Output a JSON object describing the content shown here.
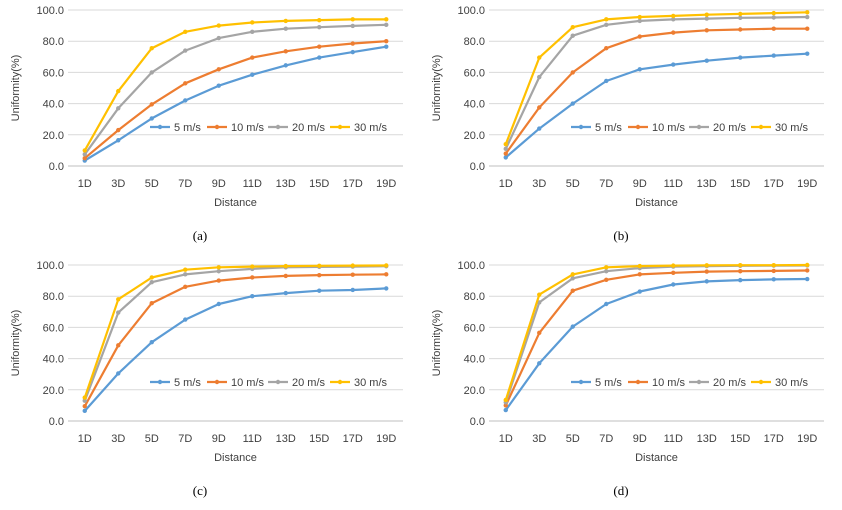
{
  "chart_data": [
    {
      "type": "line",
      "panel_label": "(a)",
      "xlabel": "Distance",
      "ylabel": "Uniformity(%)",
      "categories": [
        "1D",
        "3D",
        "5D",
        "7D",
        "9D",
        "11D",
        "13D",
        "15D",
        "17D",
        "19D"
      ],
      "ylim": [
        0,
        100
      ],
      "yticks": [
        "0.0",
        "20.0",
        "40.0",
        "60.0",
        "80.0",
        "100.0"
      ],
      "grid": true,
      "legend": "inside-bottom-right",
      "series": [
        {
          "name": "5 m/s",
          "color": "#5B9BD5",
          "values": [
            3.5,
            16.5,
            30.5,
            42,
            51.5,
            58.5,
            64.5,
            69.5,
            73,
            76.5
          ]
        },
        {
          "name": "10 m/s",
          "color": "#ED7D31",
          "values": [
            5,
            23,
            39.5,
            53,
            62,
            69.5,
            73.5,
            76.5,
            78.5,
            80
          ]
        },
        {
          "name": "20 m/s",
          "color": "#A5A5A5",
          "values": [
            7.5,
            37,
            60,
            74,
            82,
            86,
            88,
            89,
            89.8,
            90.5
          ]
        },
        {
          "name": "30 m/s",
          "color": "#FFC000",
          "values": [
            10,
            48,
            75.5,
            86,
            90,
            92,
            93,
            93.5,
            94,
            94
          ]
        }
      ]
    },
    {
      "type": "line",
      "panel_label": "(b)",
      "xlabel": "Distance",
      "ylabel": "Uniformity(%)",
      "categories": [
        "1D",
        "3D",
        "5D",
        "7D",
        "9D",
        "11D",
        "13D",
        "15D",
        "17D",
        "19D"
      ],
      "ylim": [
        0,
        100
      ],
      "yticks": [
        "0.0",
        "20.0",
        "40.0",
        "60.0",
        "80.0",
        "100.0"
      ],
      "grid": true,
      "legend": "inside-bottom-right",
      "series": [
        {
          "name": "5 m/s",
          "color": "#5B9BD5",
          "values": [
            5.5,
            24,
            40,
            54.5,
            62,
            65,
            67.5,
            69.5,
            70.8,
            72
          ]
        },
        {
          "name": "10 m/s",
          "color": "#ED7D31",
          "values": [
            8,
            37.5,
            60,
            75.5,
            83,
            85.5,
            87,
            87.5,
            88,
            88
          ]
        },
        {
          "name": "20 m/s",
          "color": "#A5A5A5",
          "values": [
            11,
            57,
            83.5,
            90.5,
            93,
            94,
            94.5,
            95,
            95.2,
            95.5
          ]
        },
        {
          "name": "30 m/s",
          "color": "#FFC000",
          "values": [
            14,
            69.5,
            89,
            94,
            95.5,
            96.2,
            97,
            97.5,
            98,
            98.5
          ]
        }
      ]
    },
    {
      "type": "line",
      "panel_label": "(c)",
      "xlabel": "Distance",
      "ylabel": "Uniformity(%)",
      "categories": [
        "1D",
        "3D",
        "5D",
        "7D",
        "9D",
        "11D",
        "13D",
        "15D",
        "17D",
        "19D"
      ],
      "ylim": [
        0,
        100
      ],
      "yticks": [
        "0.0",
        "20.0",
        "40.0",
        "60.0",
        "80.0",
        "100.0"
      ],
      "grid": true,
      "legend": "inside-bottom-right",
      "series": [
        {
          "name": "5 m/s",
          "color": "#5B9BD5",
          "values": [
            6.5,
            30.5,
            50.5,
            65,
            75,
            80,
            82,
            83.5,
            84,
            85
          ]
        },
        {
          "name": "10 m/s",
          "color": "#ED7D31",
          "values": [
            9.5,
            48.5,
            75.5,
            86,
            90,
            92,
            93,
            93.5,
            93.8,
            94
          ]
        },
        {
          "name": "20 m/s",
          "color": "#A5A5A5",
          "values": [
            13,
            69.5,
            89,
            94,
            96,
            97.5,
            98.5,
            98.8,
            99,
            99.2
          ]
        },
        {
          "name": "30 m/s",
          "color": "#FFC000",
          "values": [
            15,
            78,
            92,
            97,
            98.5,
            99,
            99.3,
            99.5,
            99.6,
            99.7
          ]
        }
      ]
    },
    {
      "type": "line",
      "panel_label": "(d)",
      "xlabel": "Distance",
      "ylabel": "Uniformity(%)",
      "categories": [
        "1D",
        "3D",
        "5D",
        "7D",
        "9D",
        "11D",
        "13D",
        "15D",
        "17D",
        "19D"
      ],
      "ylim": [
        0,
        100
      ],
      "yticks": [
        "0.0",
        "20.0",
        "40.0",
        "60.0",
        "80.0",
        "100.0"
      ],
      "grid": true,
      "legend": "inside-bottom-right",
      "series": [
        {
          "name": "5 m/s",
          "color": "#5B9BD5",
          "values": [
            7,
            37,
            60.5,
            75,
            83,
            87.5,
            89.5,
            90.3,
            90.8,
            91
          ]
        },
        {
          "name": "10 m/s",
          "color": "#ED7D31",
          "values": [
            10,
            56.5,
            83.5,
            90.5,
            94,
            95,
            95.8,
            96,
            96.2,
            96.5
          ]
        },
        {
          "name": "20 m/s",
          "color": "#A5A5A5",
          "values": [
            12,
            76,
            91.5,
            96,
            98,
            99,
            99.3,
            99.5,
            99.6,
            99.7
          ]
        },
        {
          "name": "30 m/s",
          "color": "#FFC000",
          "values": [
            13.5,
            81,
            94,
            98.5,
            99.3,
            99.6,
            99.8,
            99.9,
            99.9,
            100
          ]
        }
      ]
    }
  ]
}
